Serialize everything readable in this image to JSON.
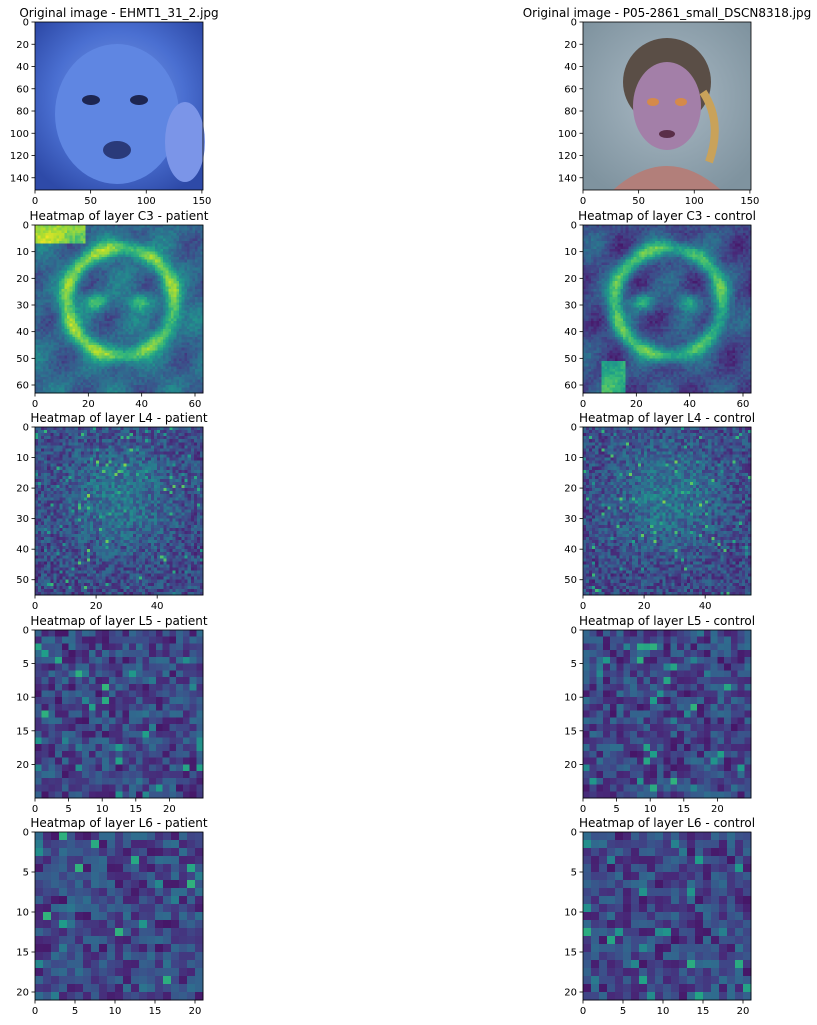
{
  "figure": {
    "panels": [
      {
        "title": "Original image - EHMT1_31_2.jpg",
        "kind": "photo",
        "variant": "patient",
        "size": 151
      },
      {
        "title": "Original image - P05-2861_small_DSCN8318.jpg",
        "kind": "photo",
        "variant": "control",
        "size": 151
      },
      {
        "title": "Heatmap of layer C3 - patient",
        "kind": "heatmap",
        "variant": "patient",
        "size": 63
      },
      {
        "title": "Heatmap of layer C3 - control",
        "kind": "heatmap",
        "variant": "control",
        "size": 63
      },
      {
        "title": "Heatmap of layer L4 - patient",
        "kind": "heatmap",
        "variant": "patient",
        "size": 55
      },
      {
        "title": "Heatmap of layer L4 - control",
        "kind": "heatmap",
        "variant": "control",
        "size": 55
      },
      {
        "title": "Heatmap of layer L5 - patient",
        "kind": "heatmap",
        "variant": "patient",
        "size": 25
      },
      {
        "title": "Heatmap of layer L5 - control",
        "kind": "heatmap",
        "variant": "control",
        "size": 25
      },
      {
        "title": "Heatmap of layer L6 - patient",
        "kind": "heatmap",
        "variant": "patient",
        "size": 21
      },
      {
        "title": "Heatmap of layer L6 - control",
        "kind": "heatmap",
        "variant": "control",
        "size": 21
      }
    ]
  },
  "chart_data": [
    {
      "type": "heatmap",
      "title": "Original image - EHMT1_31_2.jpg",
      "x": {
        "lim": [
          0,
          151
        ],
        "ticks": [
          0,
          50,
          100,
          150
        ]
      },
      "y": {
        "lim": [
          151,
          0
        ],
        "ticks": [
          0,
          20,
          40,
          60,
          80,
          100,
          120,
          140
        ]
      }
    },
    {
      "type": "heatmap",
      "title": "Original image - P05-2861_small_DSCN8318.jpg",
      "x": {
        "lim": [
          0,
          151
        ],
        "ticks": [
          0,
          50,
          100,
          150
        ]
      },
      "y": {
        "lim": [
          151,
          0
        ],
        "ticks": [
          0,
          20,
          40,
          60,
          80,
          100,
          120,
          140
        ]
      }
    },
    {
      "type": "heatmap",
      "title": "Heatmap of layer C3 - patient",
      "colormap": "viridis",
      "x": {
        "lim": [
          0,
          63
        ],
        "ticks": [
          0,
          20,
          40,
          60
        ]
      },
      "y": {
        "lim": [
          63,
          0
        ],
        "ticks": [
          0,
          10,
          20,
          30,
          40,
          50,
          60
        ]
      }
    },
    {
      "type": "heatmap",
      "title": "Heatmap of layer C3 - control",
      "colormap": "viridis",
      "x": {
        "lim": [
          0,
          63
        ],
        "ticks": [
          0,
          20,
          40,
          60
        ]
      },
      "y": {
        "lim": [
          63,
          0
        ],
        "ticks": [
          0,
          10,
          20,
          30,
          40,
          50,
          60
        ]
      }
    },
    {
      "type": "heatmap",
      "title": "Heatmap of layer L4 - patient",
      "colormap": "viridis",
      "x": {
        "lim": [
          0,
          55
        ],
        "ticks": [
          0,
          20,
          40
        ]
      },
      "y": {
        "lim": [
          55,
          0
        ],
        "ticks": [
          0,
          10,
          20,
          30,
          40,
          50
        ]
      }
    },
    {
      "type": "heatmap",
      "title": "Heatmap of layer L4 - control",
      "colormap": "viridis",
      "x": {
        "lim": [
          0,
          55
        ],
        "ticks": [
          0,
          20,
          40
        ]
      },
      "y": {
        "lim": [
          55,
          0
        ],
        "ticks": [
          0,
          10,
          20,
          30,
          40,
          50
        ]
      }
    },
    {
      "type": "heatmap",
      "title": "Heatmap of layer L5 - patient",
      "colormap": "viridis",
      "x": {
        "lim": [
          0,
          25
        ],
        "ticks": [
          0,
          5,
          10,
          15,
          20
        ]
      },
      "y": {
        "lim": [
          25,
          0
        ],
        "ticks": [
          0,
          5,
          10,
          15,
          20
        ]
      }
    },
    {
      "type": "heatmap",
      "title": "Heatmap of layer L5 - control",
      "colormap": "viridis",
      "x": {
        "lim": [
          0,
          25
        ],
        "ticks": [
          0,
          5,
          10,
          15,
          20
        ]
      },
      "y": {
        "lim": [
          25,
          0
        ],
        "ticks": [
          0,
          5,
          10,
          15,
          20
        ]
      }
    },
    {
      "type": "heatmap",
      "title": "Heatmap of layer L6 - patient",
      "colormap": "viridis",
      "x": {
        "lim": [
          0,
          21
        ],
        "ticks": [
          0,
          5,
          10,
          15,
          20
        ]
      },
      "y": {
        "lim": [
          21,
          0
        ],
        "ticks": [
          0,
          5,
          10,
          15,
          20
        ]
      }
    },
    {
      "type": "heatmap",
      "title": "Heatmap of layer L6 - control",
      "colormap": "viridis",
      "x": {
        "lim": [
          0,
          21
        ],
        "ticks": [
          0,
          5,
          10,
          15,
          20
        ]
      },
      "y": {
        "lim": [
          21,
          0
        ],
        "ticks": [
          0,
          5,
          10,
          15,
          20
        ]
      }
    }
  ]
}
